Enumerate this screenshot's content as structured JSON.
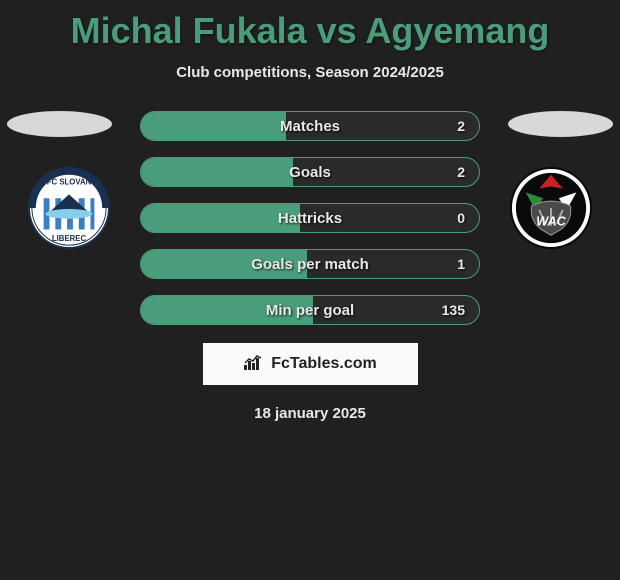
{
  "title": "Michal Fukala vs Agyemang",
  "subtitle": "Club competitions, Season 2024/2025",
  "colors": {
    "background": "#202020",
    "accent": "#4a9d7a",
    "text_light": "#e8e8e8",
    "ellipse": "#d8d8d8",
    "branding_bg": "#fafafa",
    "branding_text": "#222222"
  },
  "stats": [
    {
      "label": "Matches",
      "left_value": "",
      "right_value": "2",
      "left_fill_pct": 43
    },
    {
      "label": "Goals",
      "left_value": "",
      "right_value": "2",
      "left_fill_pct": 45
    },
    {
      "label": "Hattricks",
      "left_value": "",
      "right_value": "0",
      "left_fill_pct": 47
    },
    {
      "label": "Goals per match",
      "left_value": "",
      "right_value": "1",
      "left_fill_pct": 49
    },
    {
      "label": "Min per goal",
      "left_value": "",
      "right_value": "135",
      "left_fill_pct": 51
    }
  ],
  "clubs": {
    "left": {
      "name": "FC Slovan Liberec",
      "badge_colors": {
        "outer": "#ffffff",
        "stripes": "#3a7fc4",
        "mountain": "#1a3050",
        "text_band": "#1a3050"
      },
      "badge_text_top": "FC SLOVAN",
      "badge_text_bottom": "LIBEREC"
    },
    "right": {
      "name": "Wolfsberger AC",
      "badge_colors": {
        "bg": "#ffffff",
        "black": "#0a0a0a",
        "red": "#cc2020",
        "green": "#2a8a3a"
      },
      "badge_text": "WAC"
    }
  },
  "branding": "FcTables.com",
  "date": "18 january 2025"
}
